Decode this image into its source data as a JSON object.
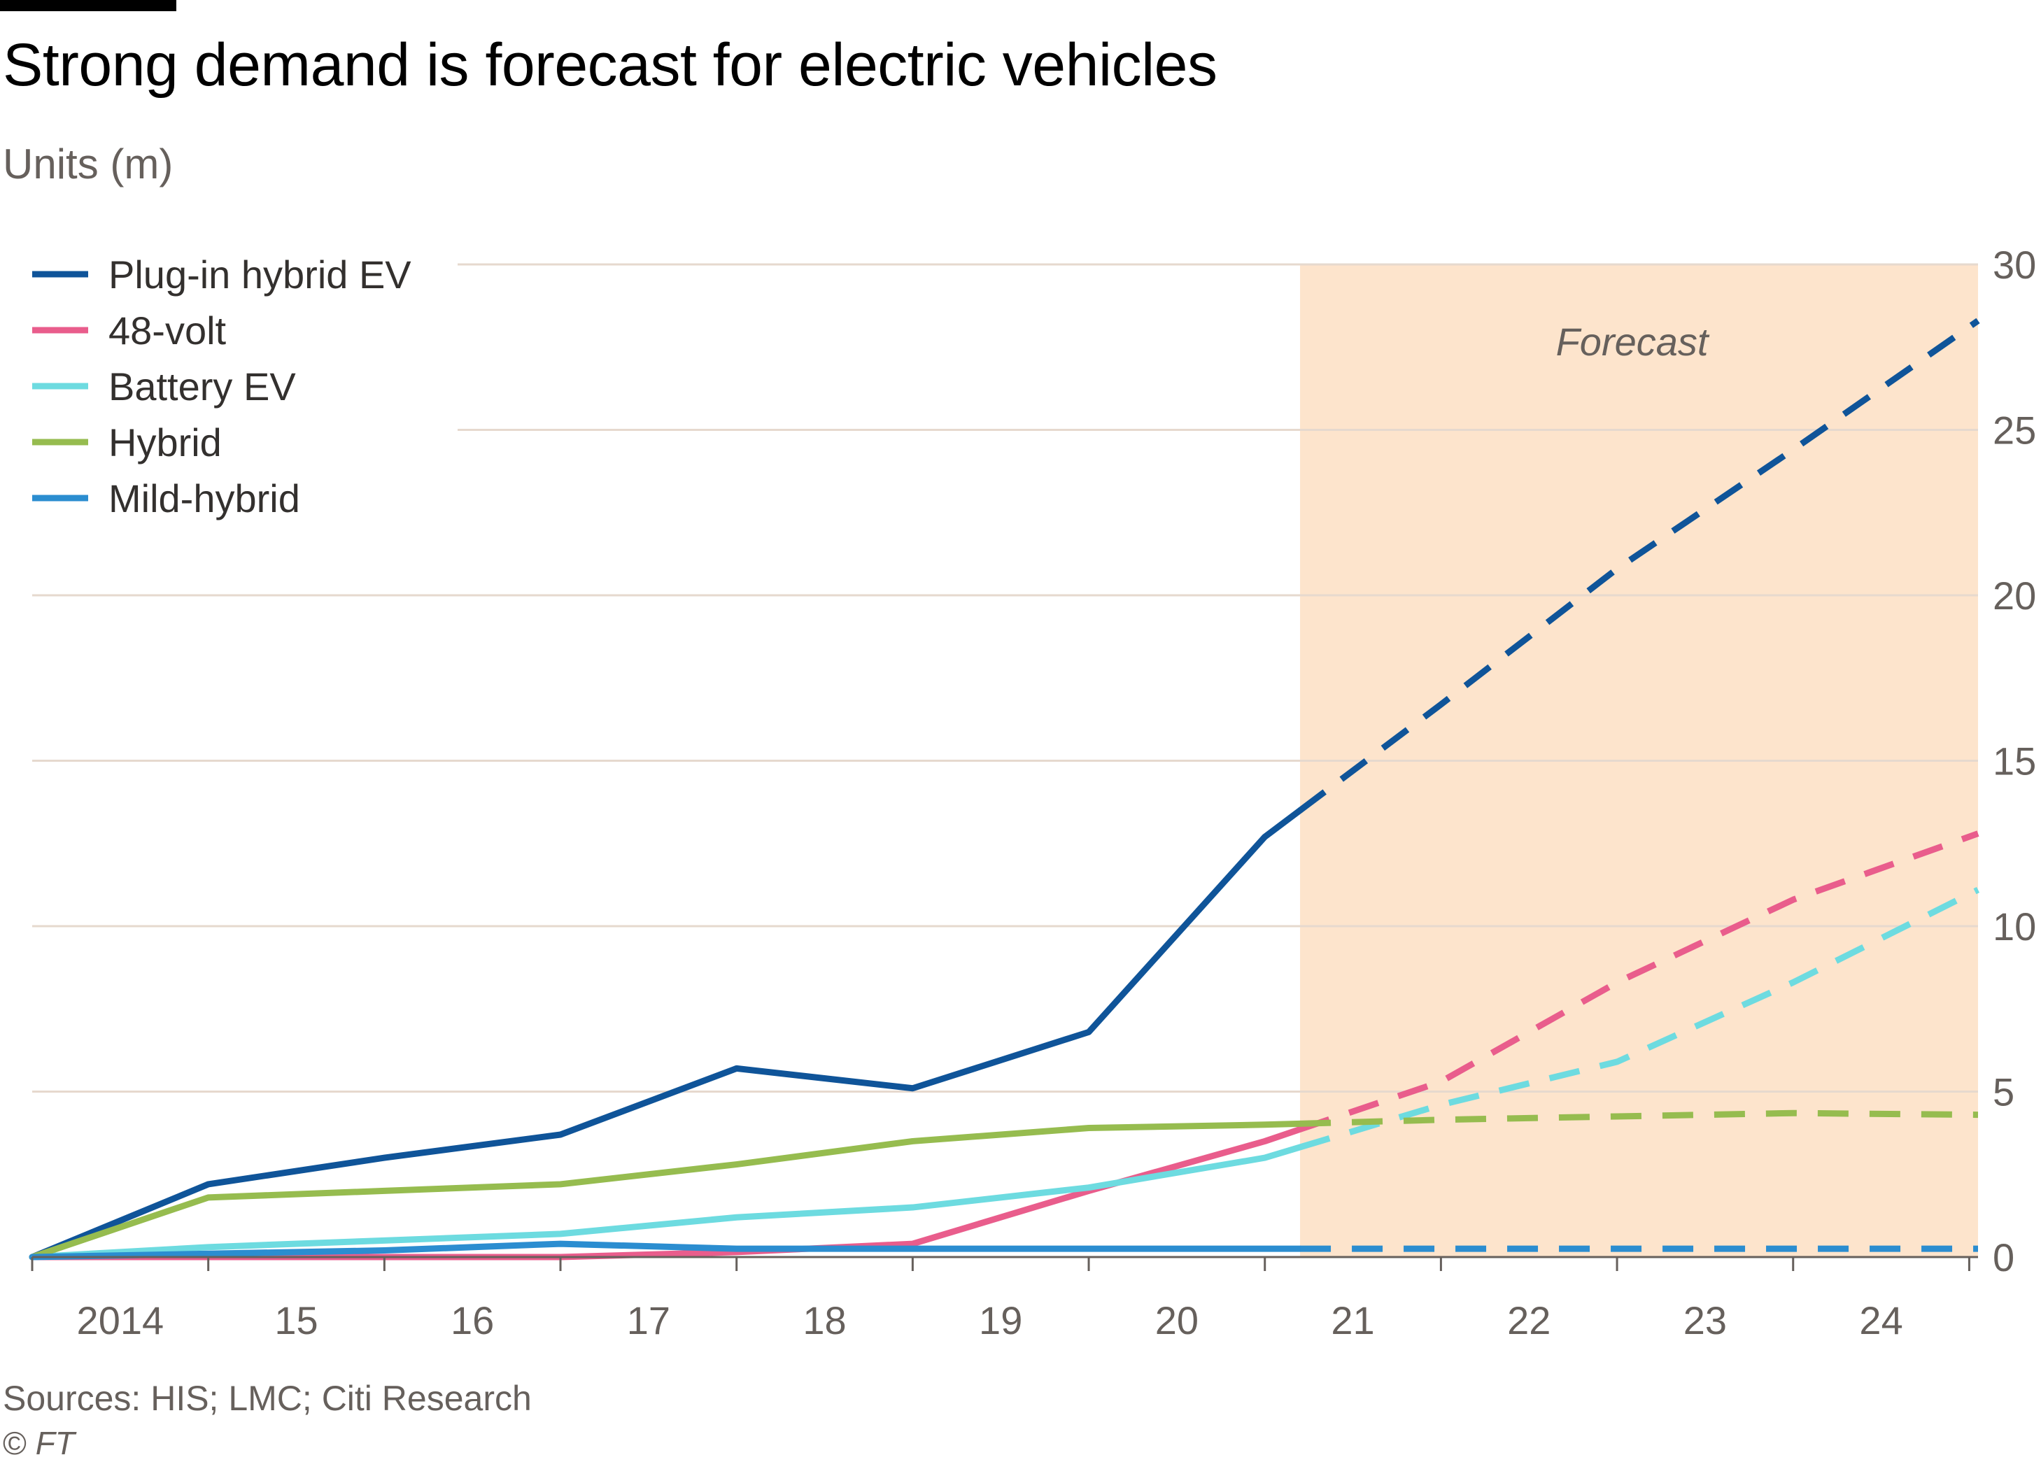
{
  "header": {
    "title": "Strong demand is forecast for electric vehicles",
    "subtitle": "Units (m)"
  },
  "footer": {
    "source": "Sources: HIS; LMC; Citi Research",
    "copyright_symbol": "©",
    "copyright_brand": "FT"
  },
  "colors": {
    "background": "#ffffff",
    "forecast_band": "#fde4cc",
    "gridline": "#e6d9ce",
    "axis": "#66605c"
  },
  "chart_data": {
    "type": "line",
    "title": "Strong demand is forecast for electric vehicles",
    "ylabel": "Units (m)",
    "xlabel": "",
    "x_tick_labels": [
      "2014",
      "15",
      "16",
      "17",
      "18",
      "19",
      "20",
      "21",
      "22",
      "23",
      "24"
    ],
    "x_tick_positions": [
      2014,
      2015,
      2016,
      2017,
      2018,
      2019,
      2020,
      2021,
      2022,
      2023,
      2024
    ],
    "xlim": [
      2013.5,
      2024.55
    ],
    "ylim": [
      0,
      30
    ],
    "y_ticks": [
      0,
      5,
      10,
      15,
      20,
      25,
      30
    ],
    "y_axis_side": "right",
    "grid": true,
    "legend_position": "top-left",
    "forecast": {
      "label": "Forecast",
      "start": 2020.7,
      "end": 2024.55
    },
    "x": [
      2013.5,
      2014.5,
      2015.5,
      2016.5,
      2017.5,
      2018.5,
      2019.5,
      2020.5,
      2021.5,
      2022.5,
      2023.5,
      2024.55
    ],
    "series": [
      {
        "name": "Plug-in hybrid EV",
        "color": "#0f5499",
        "values": [
          0,
          2.2,
          3.0,
          3.7,
          5.7,
          5.1,
          6.8,
          12.7,
          16.7,
          20.8,
          24.4,
          28.3
        ]
      },
      {
        "name": "48-volt",
        "color": "#e95d8c",
        "values": [
          0,
          0,
          0,
          0,
          0.15,
          0.4,
          2.0,
          3.5,
          5.3,
          8.3,
          10.8,
          12.8
        ]
      },
      {
        "name": "Battery EV",
        "color": "#6ddbe0",
        "values": [
          0,
          0.3,
          0.5,
          0.7,
          1.2,
          1.5,
          2.1,
          3.0,
          4.6,
          5.9,
          8.3,
          11.1
        ]
      },
      {
        "name": "Hybrid",
        "color": "#96bc4f",
        "values": [
          0,
          1.8,
          2.0,
          2.2,
          2.8,
          3.5,
          3.9,
          4.0,
          4.15,
          4.25,
          4.35,
          4.3
        ]
      },
      {
        "name": "Mild-hybrid",
        "color": "#2b8dd0",
        "values": [
          0,
          0.1,
          0.2,
          0.4,
          0.25,
          0.25,
          0.25,
          0.25,
          0.25,
          0.25,
          0.25,
          0.25
        ]
      }
    ]
  }
}
